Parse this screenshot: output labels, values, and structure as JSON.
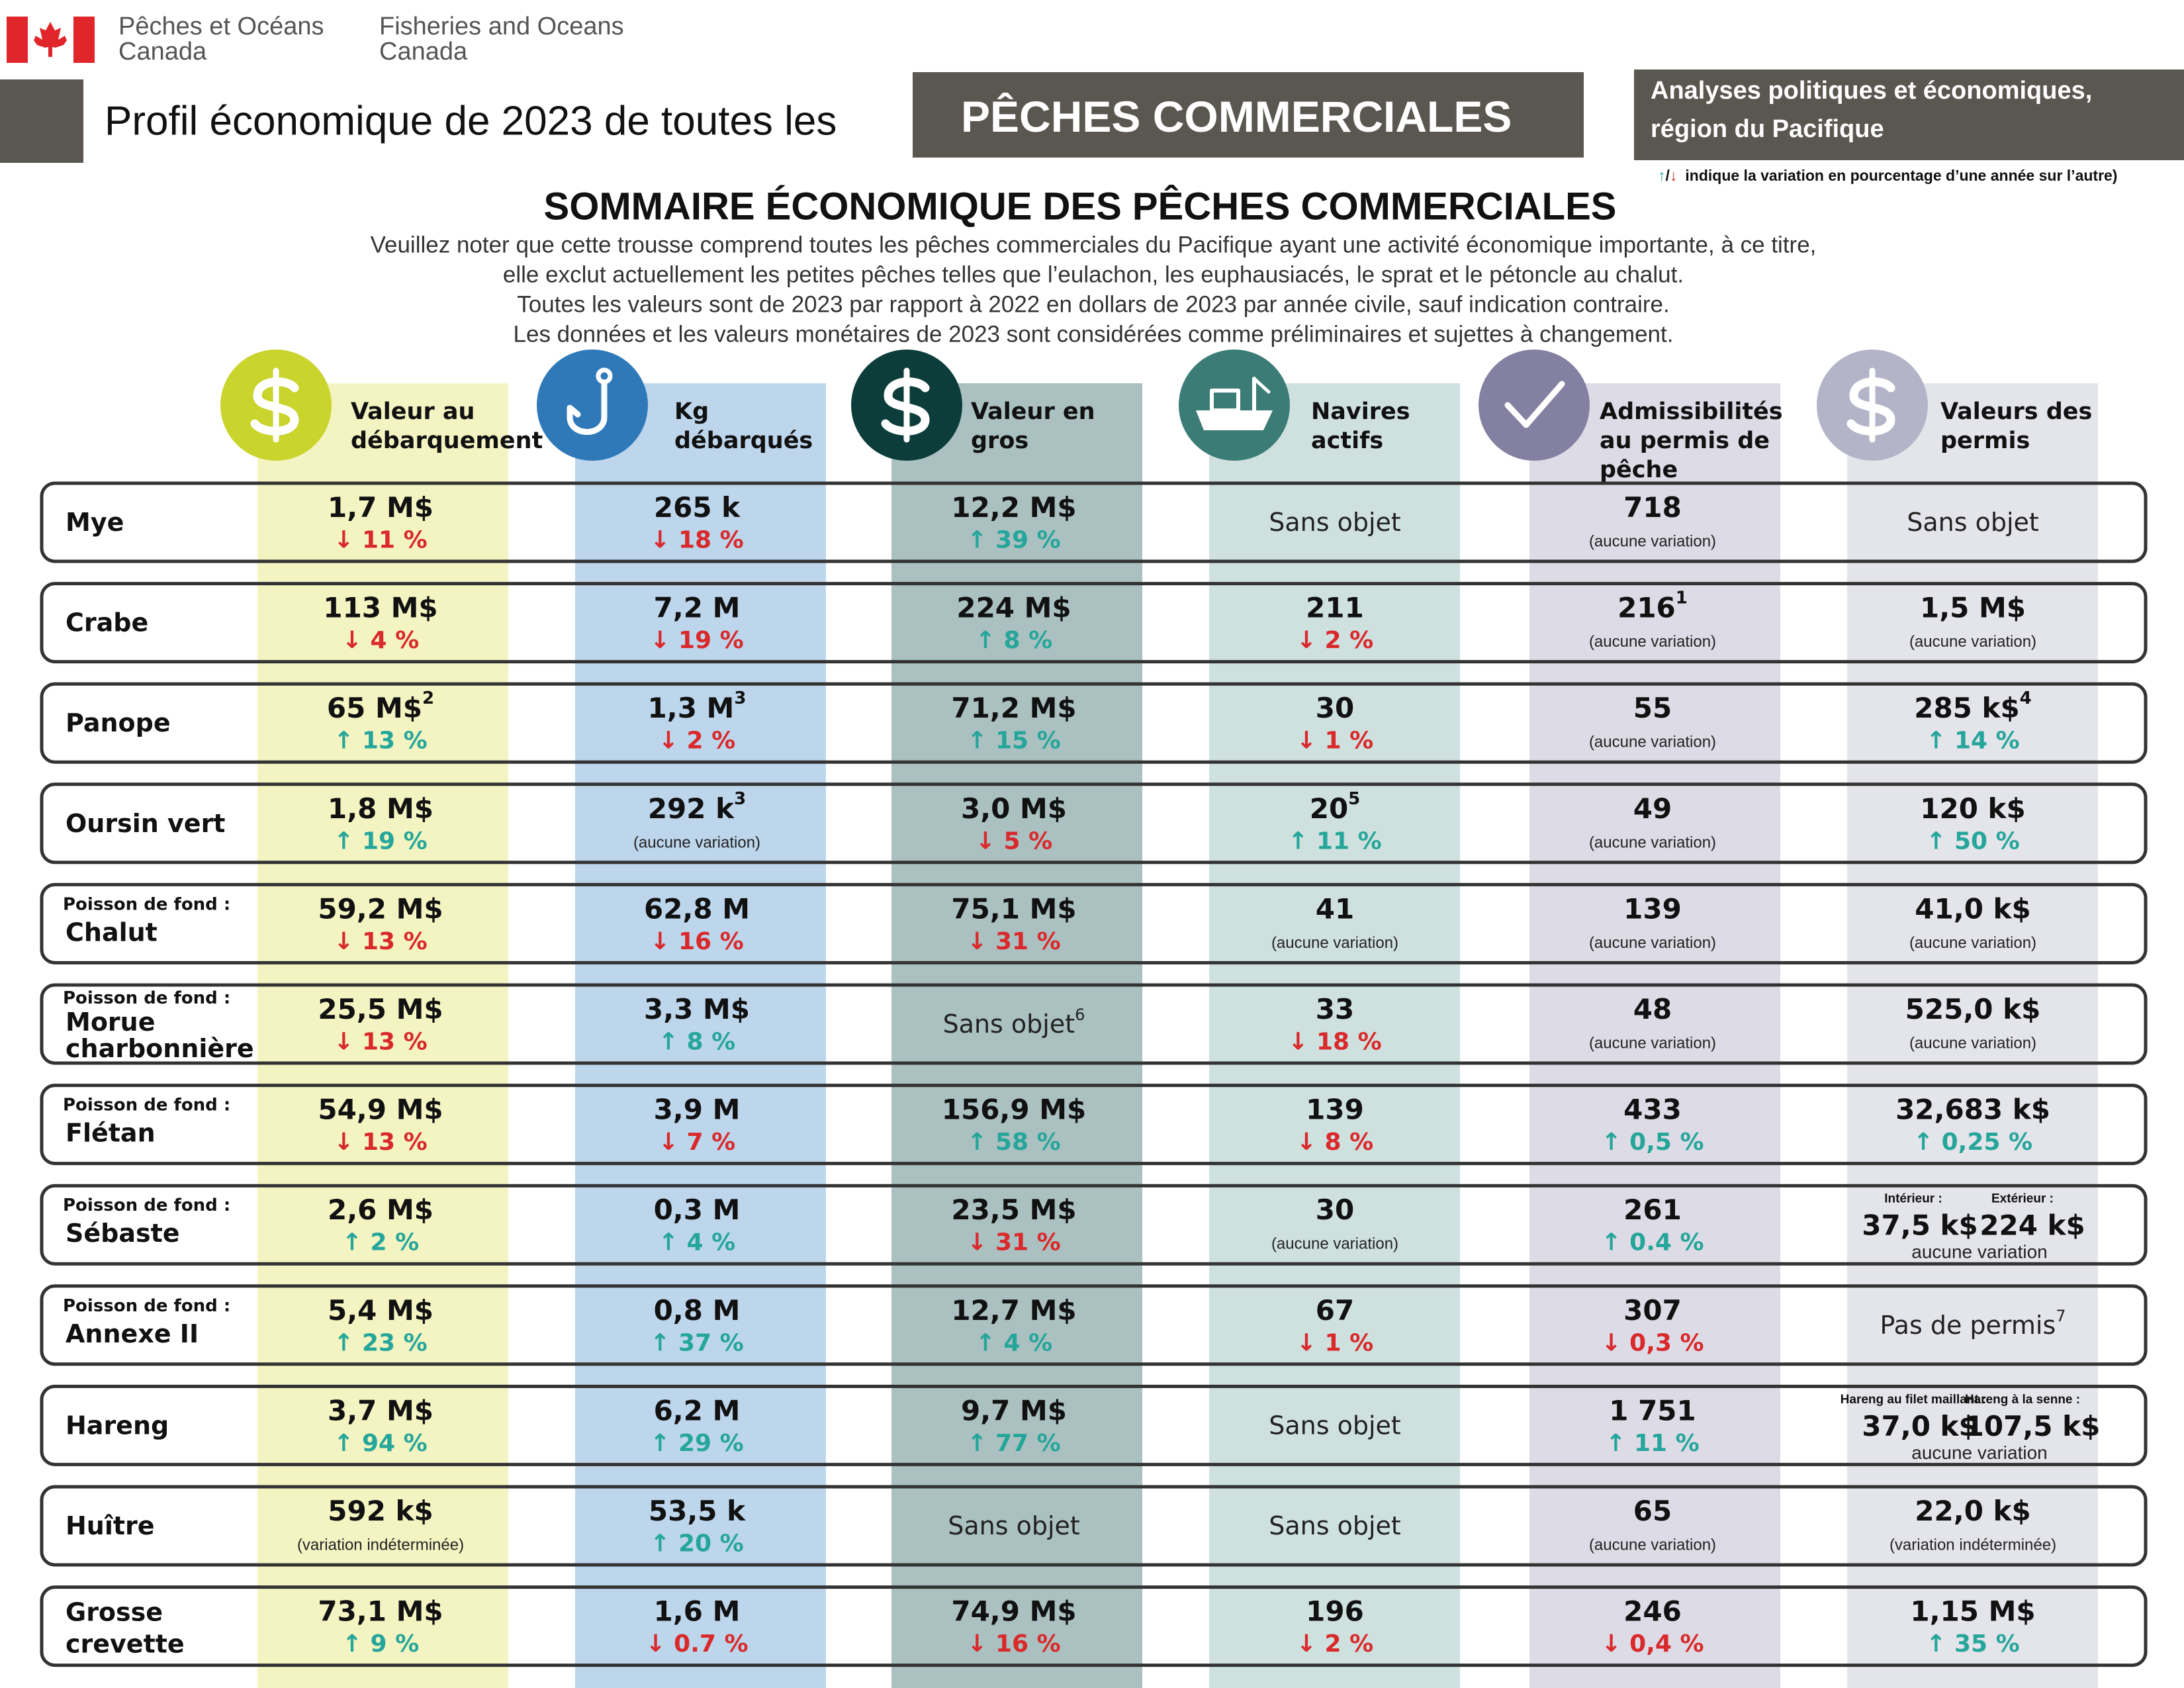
{
  "header": {
    "org_fr": [
      "Pêches et Océans",
      "Canada"
    ],
    "org_en": [
      "Fisheries and Oceans",
      "Canada"
    ],
    "profile_title": "Profil économique de 2023 de toutes les",
    "banner": "PÊCHES COMMERCIALES",
    "region": [
      "Analyses politiques et économiques,",
      "région du Pacifique"
    ],
    "legend": {
      "up": "↑",
      "sep": "/",
      "down": "↓",
      "text": "indique la variation en pourcentage d’une année sur l’autre)"
    }
  },
  "summary": {
    "title": "SOMMAIRE ÉCONOMIQUE DES PÊCHES COMMERCIALES",
    "notes": [
      "Veuillez noter que cette trousse comprend toutes les pêches commerciales du Pacifique ayant une activité économique importante, à ce titre,",
      "elle exclut actuellement les petites pêches telles que l’eulachon, les euphausiacés, le sprat et le pétoncle au chalut.",
      "Toutes les valeurs sont de 2023 par rapport à 2022 en dollars de 2023 par année civile, sauf indication contraire.",
      "Les données et les valeurs monétaires de 2023 sont considérées comme préliminaires et sujettes à changement."
    ]
  },
  "table": {
    "up_color": "#26a69a",
    "down_color": "#d9292b",
    "columns": [
      {
        "label": [
          "Valeur au",
          "débarquement"
        ],
        "color": "#f3f4c2",
        "icon_color": "#c9d42c"
      },
      {
        "label": [
          "Kg",
          "débarqués"
        ],
        "color": "#bdd6ec",
        "icon_color": "#2f79b9"
      },
      {
        "label": [
          "Valeur en",
          "gros"
        ],
        "color": "#abc0c0",
        "icon_color": "#0c3d3a"
      },
      {
        "label": [
          "Navires",
          "actifs"
        ],
        "color": "#cfe1df",
        "icon_color": "#3b7c76"
      },
      {
        "label": [
          "Admissibilités",
          "au permis de",
          "pêche"
        ],
        "color": "#dddce6",
        "icon_color": "#8380a1"
      },
      {
        "label": [
          "Valeurs des",
          "permis"
        ],
        "color": "#e4e4eb",
        "icon_color": "#b4b4c9"
      }
    ],
    "rows": [
      {
        "label": [
          "Mye"
        ],
        "cells": [
          {
            "value": "1,7 M$",
            "change": "↓ 11 %"
          },
          {
            "value": "265 k",
            "change": "↓ 18 %"
          },
          {
            "value": "12,2 M$",
            "change": "↑ 39 %"
          },
          {
            "value": "Sans objet"
          },
          {
            "value": "718",
            "note": "(aucune variation)"
          },
          {
            "value": "Sans objet"
          }
        ]
      },
      {
        "label": [
          "Crabe"
        ],
        "cells": [
          {
            "value": "113 M$",
            "change": "↓ 4 %"
          },
          {
            "value": "7,2 M",
            "change": "↓ 19 %"
          },
          {
            "value": "224 M$",
            "change": "↑ 8 %"
          },
          {
            "value": "211",
            "change": "↓ 2 %"
          },
          {
            "value": "216",
            "sup": "1",
            "note": "(aucune variation)"
          },
          {
            "value": "1,5 M$",
            "note": "(aucune variation)"
          }
        ]
      },
      {
        "label": [
          "Panope"
        ],
        "cells": [
          {
            "value": "65 M$",
            "sup": "2",
            "change": "↑ 13 %"
          },
          {
            "value": "1,3 M",
            "sup": "3",
            "change": "↓ 2 %"
          },
          {
            "value": "71,2 M$",
            "change": "↑ 15 %"
          },
          {
            "value": "30",
            "change": "↓ 1 %"
          },
          {
            "value": "55",
            "note": "(aucune variation)"
          },
          {
            "value": "285 k$",
            "sup": "4",
            "change": "↑ 14 %"
          }
        ]
      },
      {
        "label": [
          "Oursin vert"
        ],
        "cells": [
          {
            "value": "1,8 M$",
            "change": "↑ 19 %"
          },
          {
            "value": "292 k",
            "sup": "3",
            "note": "(aucune variation)"
          },
          {
            "value": "3,0 M$",
            "change": "↓ 5 %"
          },
          {
            "value": "20",
            "sup": "5",
            "change": "↑ 11 %"
          },
          {
            "value": "49",
            "note": "(aucune variation)"
          },
          {
            "value": "120 k$",
            "change": "↑ 50 %"
          }
        ]
      },
      {
        "prefix": "Poisson de fond :",
        "label": [
          "Chalut"
        ],
        "cells": [
          {
            "value": "59,2 M$",
            "change": "↓ 13 %"
          },
          {
            "value": "62,8 M",
            "change": "↓ 16 %"
          },
          {
            "value": "75,1 M$",
            "change": "↓ 31 %"
          },
          {
            "value": "41",
            "note": "(aucune variation)"
          },
          {
            "value": "139",
            "note": "(aucune variation)"
          },
          {
            "value": "41,0 k$",
            "note": "(aucune variation)"
          }
        ]
      },
      {
        "prefix": "Poisson de fond :",
        "label": [
          "Morue",
          "charbonnière"
        ],
        "cells": [
          {
            "value": "25,5 M$",
            "change": "↓ 13 %"
          },
          {
            "value": "3,3 M$",
            "change": "↑ 8 %"
          },
          {
            "value": "Sans objet",
            "sup": "6"
          },
          {
            "value": "33",
            "change": "↓ 18 %"
          },
          {
            "value": "48",
            "note": "(aucune variation)"
          },
          {
            "value": "525,0 k$",
            "note": "(aucune variation)"
          }
        ]
      },
      {
        "prefix": "Poisson de fond :",
        "label": [
          "Flétan"
        ],
        "cells": [
          {
            "value": "54,9 M$",
            "change": "↓ 13 %"
          },
          {
            "value": "3,9 M",
            "change": "↓ 7 %"
          },
          {
            "value": "156,9 M$",
            "change": "↑ 58 %"
          },
          {
            "value": "139",
            "change": "↓ 8 %"
          },
          {
            "value": "433",
            "change": "↑ 0,5 %"
          },
          {
            "value": "32,683 k$",
            "change": "↑ 0,25 %"
          }
        ]
      },
      {
        "prefix": "Poisson de fond :",
        "label": [
          "Sébaste"
        ],
        "cells": [
          {
            "value": "2,6 M$",
            "change": "↑ 2 %"
          },
          {
            "value": "0,3 M",
            "change": "↑ 4 %"
          },
          {
            "value": "23,5 M$",
            "change": "↓ 31 %"
          },
          {
            "value": "30",
            "note": "(aucune variation)"
          },
          {
            "value": "261",
            "change": "↑ 0.4 %"
          },
          {
            "sublabels": [
              "Intérieur :",
              "Extérieur :"
            ],
            "values": [
              "37,5 k$",
              "224 k$"
            ],
            "note": "aucune variation"
          }
        ]
      },
      {
        "prefix": "Poisson de fond :",
        "label": [
          "Annexe II"
        ],
        "cells": [
          {
            "value": "5,4 M$",
            "change": "↑ 23 %"
          },
          {
            "value": "0,8 M",
            "change": "↑ 37 %"
          },
          {
            "value": "12,7 M$",
            "change": "↑ 4 %"
          },
          {
            "value": "67",
            "change": "↓ 1 %"
          },
          {
            "value": "307",
            "change": "↓ 0,3 %"
          },
          {
            "value": "Pas de permis",
            "sup": "7"
          }
        ]
      },
      {
        "label": [
          "Hareng"
        ],
        "cells": [
          {
            "value": "3,7 M$",
            "change": "↑ 94 %"
          },
          {
            "value": "6,2 M",
            "change": "↑ 29 %"
          },
          {
            "value": "9,7 M$",
            "change": "↑ 77 %"
          },
          {
            "value": "Sans objet"
          },
          {
            "value": "1 751",
            "change": "↑ 11 %"
          },
          {
            "sublabels": [
              "Hareng au filet maillant :",
              "Hareng à la senne :"
            ],
            "values": [
              "37,0 k$",
              "107,5 k$"
            ],
            "note": "aucune variation"
          }
        ]
      },
      {
        "label": [
          "Huître"
        ],
        "cells": [
          {
            "value": "592 k$",
            "note": "(variation indéterminée)"
          },
          {
            "value": "53,5 k",
            "change": "↑ 20 %"
          },
          {
            "value": "Sans objet"
          },
          {
            "value": "Sans objet"
          },
          {
            "value": "65",
            "note": "(aucune variation)"
          },
          {
            "value": "22,0 k$",
            "note": "(variation indéterminée)"
          }
        ]
      },
      {
        "label": [
          "Grosse",
          "crevette"
        ],
        "cells": [
          {
            "value": "73,1 M$",
            "change": "↑ 9 %"
          },
          {
            "value": "1,6 M",
            "change": "↓ 0.7 %"
          },
          {
            "value": "74,9 M$",
            "change": "↓ 16 %"
          },
          {
            "value": "196",
            "change": "↓ 2 %"
          },
          {
            "value": "246",
            "change": "↓ 0,4 %"
          },
          {
            "value": "1,15 M$",
            "change": "↑ 35 %"
          }
        ]
      }
    ]
  }
}
